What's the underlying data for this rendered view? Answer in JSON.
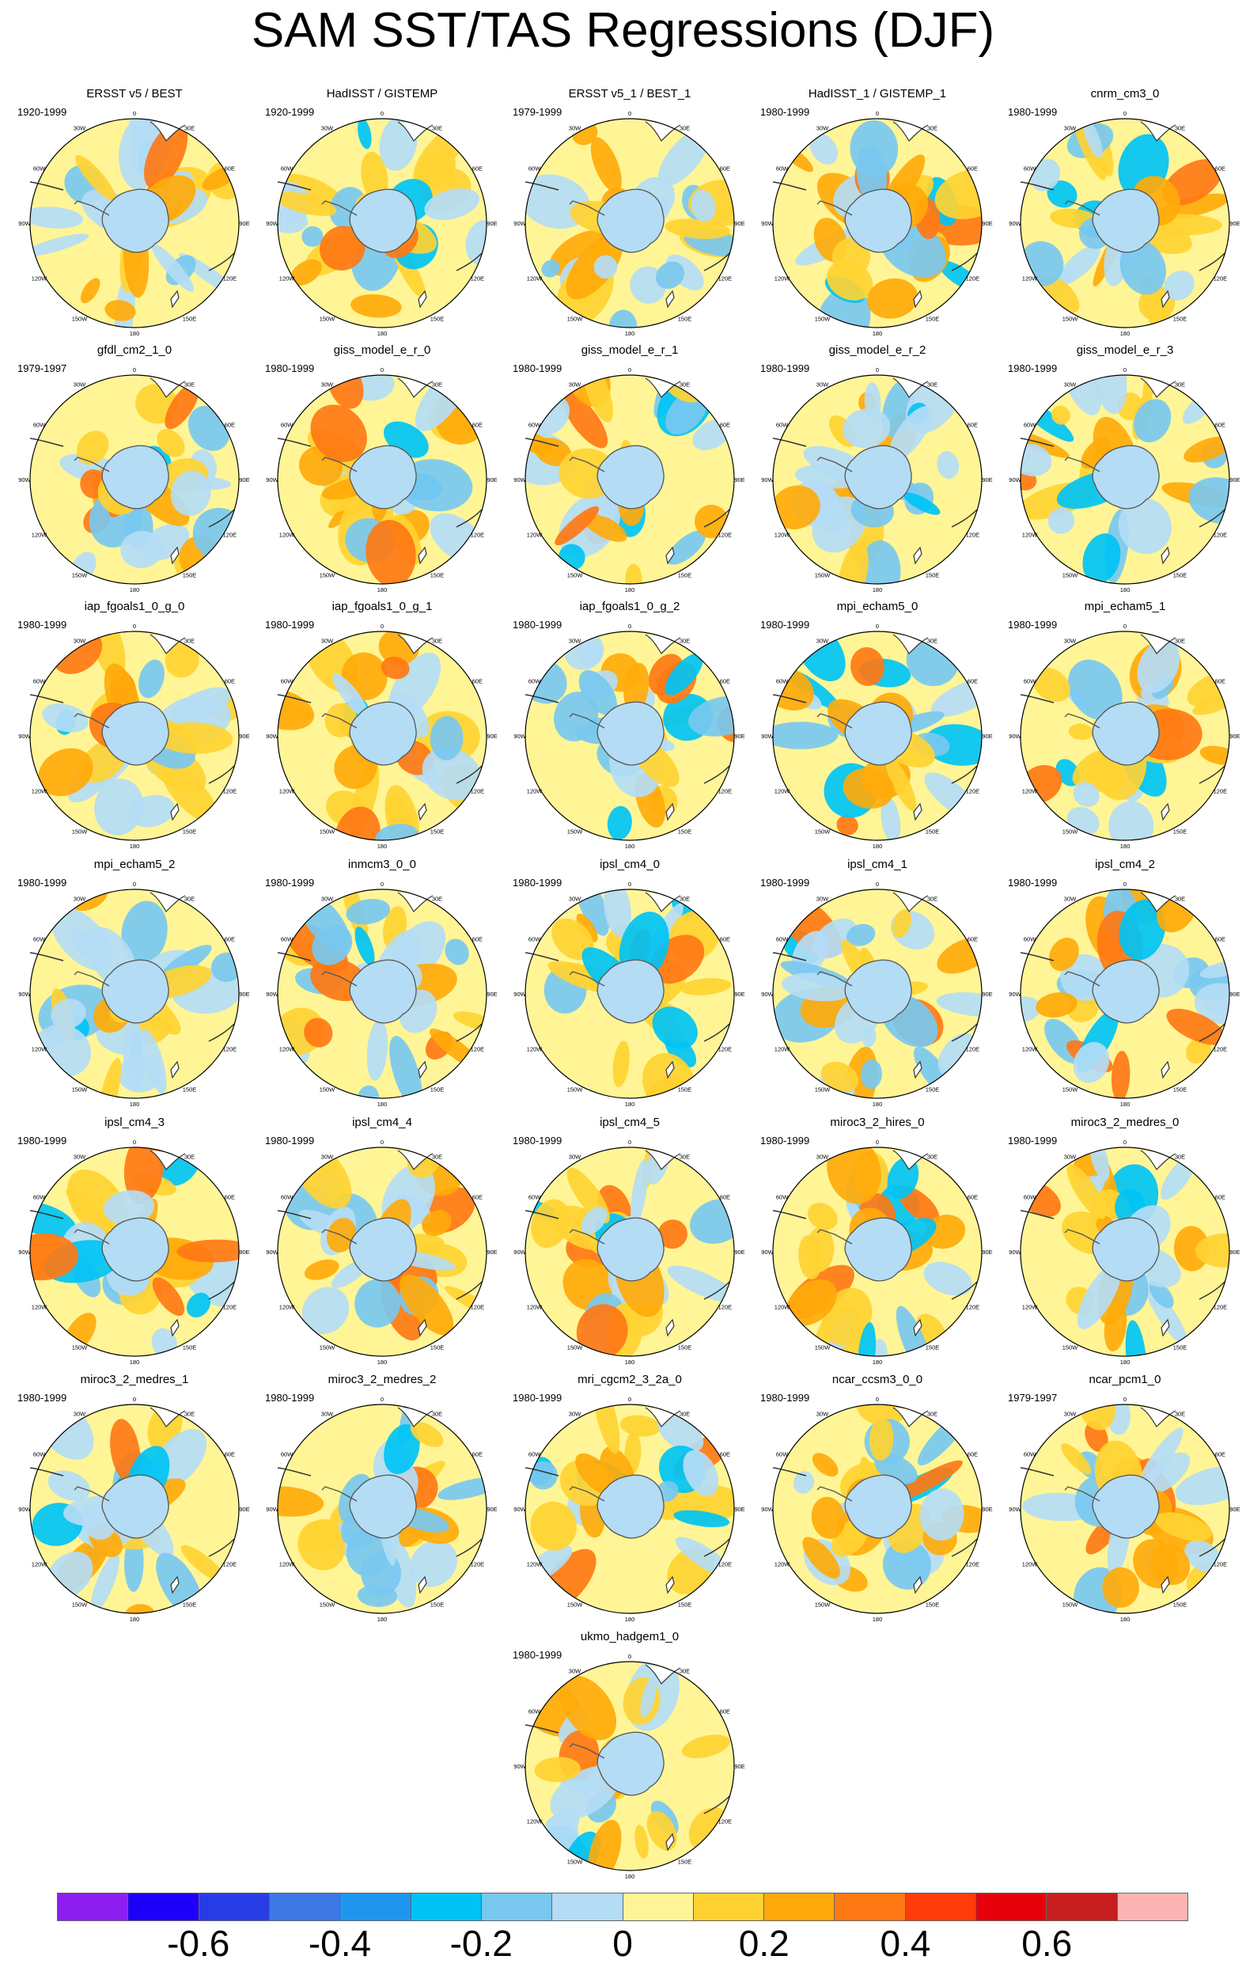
{
  "title": "SAM SST/TAS Regressions (DJF)",
  "map": {
    "lon_labels": [
      "0",
      "30E",
      "60E",
      "90E",
      "120E",
      "150E",
      "180",
      "150W",
      "120W",
      "90W",
      "60W",
      "30W"
    ]
  },
  "panels": [
    {
      "title": "ERSST v5 / BEST",
      "period": "1920-1999"
    },
    {
      "title": "HadISST / GISTEMP",
      "period": "1920-1999"
    },
    {
      "title": "ERSST v5_1 / BEST_1",
      "period": "1979-1999"
    },
    {
      "title": "HadISST_1 / GISTEMP_1",
      "period": "1980-1999"
    },
    {
      "title": "cnrm_cm3_0",
      "period": "1980-1999"
    },
    {
      "title": "gfdl_cm2_1_0",
      "period": "1979-1997"
    },
    {
      "title": "giss_model_e_r_0",
      "period": "1980-1999"
    },
    {
      "title": "giss_model_e_r_1",
      "period": "1980-1999"
    },
    {
      "title": "giss_model_e_r_2",
      "period": "1980-1999"
    },
    {
      "title": "giss_model_e_r_3",
      "period": "1980-1999"
    },
    {
      "title": "iap_fgoals1_0_g_0",
      "period": "1980-1999"
    },
    {
      "title": "iap_fgoals1_0_g_1",
      "period": "1980-1999"
    },
    {
      "title": "iap_fgoals1_0_g_2",
      "period": "1980-1999"
    },
    {
      "title": "mpi_echam5_0",
      "period": "1980-1999"
    },
    {
      "title": "mpi_echam5_1",
      "period": "1980-1999"
    },
    {
      "title": "mpi_echam5_2",
      "period": "1980-1999"
    },
    {
      "title": "inmcm3_0_0",
      "period": "1980-1999"
    },
    {
      "title": "ipsl_cm4_0",
      "period": "1980-1999"
    },
    {
      "title": "ipsl_cm4_1",
      "period": "1980-1999"
    },
    {
      "title": "ipsl_cm4_2",
      "period": "1980-1999"
    },
    {
      "title": "ipsl_cm4_3",
      "period": "1980-1999"
    },
    {
      "title": "ipsl_cm4_4",
      "period": "1980-1999"
    },
    {
      "title": "ipsl_cm4_5",
      "period": "1980-1999"
    },
    {
      "title": "miroc3_2_hires_0",
      "period": "1980-1999"
    },
    {
      "title": "miroc3_2_medres_0",
      "period": "1980-1999"
    },
    {
      "title": "miroc3_2_medres_1",
      "period": "1980-1999"
    },
    {
      "title": "miroc3_2_medres_2",
      "period": "1980-1999"
    },
    {
      "title": "mri_cgcm2_3_2a_0",
      "period": "1980-1999"
    },
    {
      "title": "ncar_ccsm3_0_0",
      "period": "1980-1999"
    },
    {
      "title": "ncar_pcm1_0",
      "period": "1979-1997"
    },
    {
      "title": "ukmo_hadgem1_0",
      "period": "1980-1999"
    }
  ],
  "colorbar": {
    "colors": [
      "#8c1ef0",
      "#1e00fa",
      "#283ce6",
      "#3c78e6",
      "#1e96f0",
      "#00c3f5",
      "#78c8f0",
      "#b4dcf5",
      "#fff596",
      "#ffd232",
      "#ffaa0a",
      "#ff7814",
      "#ff3c0a",
      "#e6000a",
      "#c81e1e",
      "#ffb4b4"
    ],
    "tick_labels": [
      "-0.6",
      "-0.4",
      "-0.2",
      "0",
      "0.2",
      "0.4",
      "0.6"
    ]
  }
}
